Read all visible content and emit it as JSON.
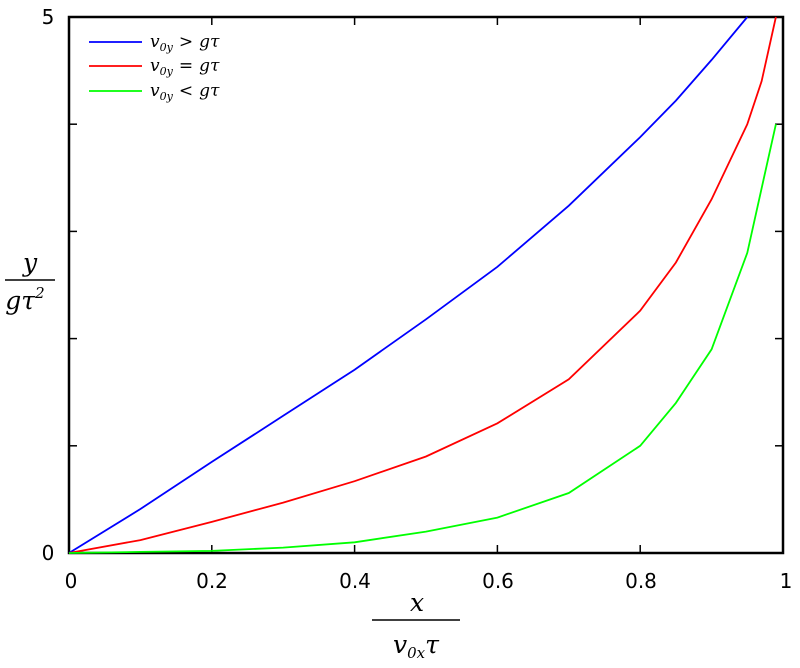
{
  "chart_data": {
    "type": "line",
    "xlim": [
      0,
      1
    ],
    "ylim": [
      0,
      5
    ],
    "x_ticks": [
      "0",
      "0.2",
      "0.4",
      "0.6",
      "0.8",
      "1"
    ],
    "y_ticks": [
      "0",
      "5"
    ],
    "x_minor_tick_values": [
      0.2,
      0.4,
      0.6,
      0.8
    ],
    "y_minor_tick_values": [
      1,
      2,
      3,
      4
    ],
    "xlabel": {
      "numerator": "x",
      "denominator_base": "v",
      "denominator_sub": "0x",
      "denominator_tail": "τ"
    },
    "ylabel": {
      "numerator": "y",
      "denominator_base": "gτ",
      "denominator_sup": "2"
    },
    "grid": false,
    "legend_position": "top-left",
    "series": [
      {
        "name": "v0y > gτ",
        "label_base": "v",
        "label_sub": "0y",
        "label_rel": ">",
        "label_rhs": "gτ",
        "color": "#0000ff",
        "points": [
          [
            0,
            0
          ],
          [
            0.1,
            0.41
          ],
          [
            0.2,
            0.85
          ],
          [
            0.3,
            1.28
          ],
          [
            0.4,
            1.71
          ],
          [
            0.5,
            2.18
          ],
          [
            0.6,
            2.67
          ],
          [
            0.7,
            3.24
          ],
          [
            0.8,
            3.88
          ],
          [
            0.85,
            4.22
          ],
          [
            0.9,
            4.6
          ],
          [
            0.95,
            5.0
          ]
        ]
      },
      {
        "name": "v0y = gτ",
        "label_base": "v",
        "label_sub": "0y",
        "label_rel": "=",
        "label_rhs": "gτ",
        "color": "#ff0000",
        "points": [
          [
            0,
            0
          ],
          [
            0.1,
            0.12
          ],
          [
            0.2,
            0.29
          ],
          [
            0.3,
            0.47
          ],
          [
            0.4,
            0.67
          ],
          [
            0.5,
            0.9
          ],
          [
            0.6,
            1.21
          ],
          [
            0.7,
            1.62
          ],
          [
            0.8,
            2.26
          ],
          [
            0.85,
            2.71
          ],
          [
            0.9,
            3.3
          ],
          [
            0.95,
            4.0
          ],
          [
            0.97,
            4.4
          ],
          [
            0.99,
            5.0
          ]
        ]
      },
      {
        "name": "v0y < gτ",
        "label_base": "v",
        "label_sub": "0y",
        "label_rel": "<",
        "label_rhs": "gτ",
        "color": "#00ff00",
        "points": [
          [
            0,
            0
          ],
          [
            0.1,
            0.01
          ],
          [
            0.2,
            0.02
          ],
          [
            0.3,
            0.05
          ],
          [
            0.4,
            0.1
          ],
          [
            0.5,
            0.2
          ],
          [
            0.6,
            0.33
          ],
          [
            0.7,
            0.56
          ],
          [
            0.8,
            1.0
          ],
          [
            0.85,
            1.4
          ],
          [
            0.9,
            1.9
          ],
          [
            0.95,
            2.8
          ],
          [
            0.98,
            3.7
          ],
          [
            0.99,
            4.0
          ]
        ]
      }
    ]
  }
}
